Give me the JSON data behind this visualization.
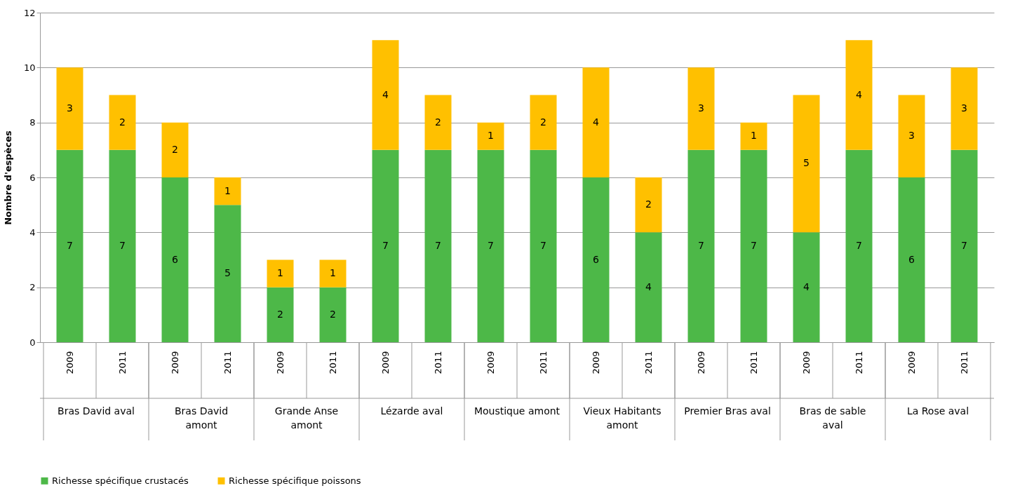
{
  "chart_data": {
    "type": "bar",
    "stacked": true,
    "ylabel": "Nombre d'espèces",
    "categories": [
      "2009",
      "2011",
      "2009",
      "2011",
      "2009",
      "2011",
      "2009",
      "2011",
      "2009",
      "2011",
      "2009",
      "2011",
      "2009",
      "2011",
      "2009",
      "2011",
      "2009",
      "2011"
    ],
    "annotations": [
      "Bras David aval",
      "Bras David\namont",
      "Grande Anse\namont",
      "Lézarde aval",
      "Moustique amont",
      "Vieux Habitants\namont",
      "Premier Bras aval",
      "Bras de sable\naval",
      "La Rose aval"
    ],
    "series": [
      {
        "name": "Richesse spécifique crustacés",
        "color": "#4db848",
        "values": [
          7,
          7,
          6,
          5,
          2,
          2,
          7,
          7,
          7,
          7,
          6,
          4,
          7,
          7,
          4,
          7,
          6,
          7
        ]
      },
      {
        "name": "Richesse spécifique poissons",
        "color": "#ffc000",
        "values": [
          3,
          2,
          2,
          1,
          1,
          1,
          4,
          2,
          1,
          2,
          4,
          2,
          3,
          1,
          5,
          4,
          3,
          3
        ]
      }
    ],
    "ylim": [
      0,
      12
    ],
    "yticks": [
      0,
      2,
      4,
      6,
      8,
      10,
      12
    ],
    "grid": "y",
    "data_labels": true,
    "legend": "bottom"
  }
}
